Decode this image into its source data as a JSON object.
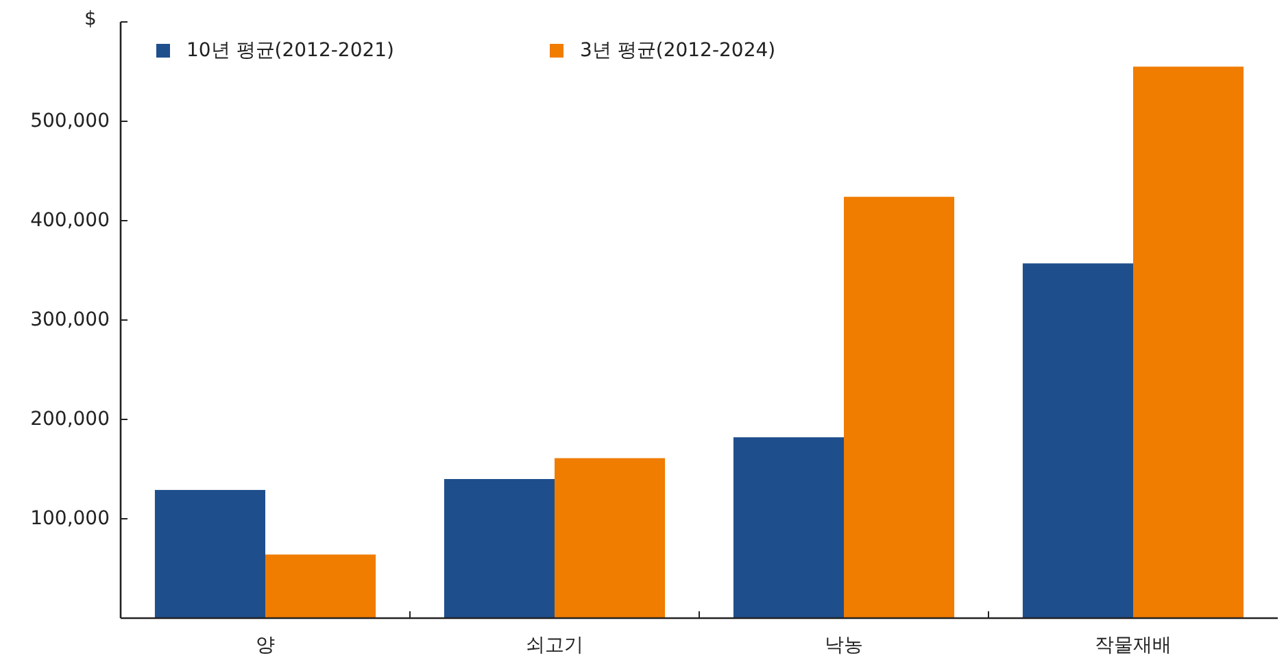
{
  "chart_data": {
    "type": "bar",
    "ylabel": "$",
    "categories": [
      "양",
      "쇠고기",
      "낙농",
      "작물재배"
    ],
    "series": [
      {
        "name": "10년 평균(2012-2021)",
        "color": "#1f4e8c",
        "values": [
          129000,
          140000,
          182000,
          357000
        ]
      },
      {
        "name": "3년 평균(2012-2024)",
        "color": "#f07c00",
        "values": [
          64000,
          161000,
          424000,
          555000
        ]
      }
    ],
    "ylim": [
      0,
      600000
    ],
    "yticks": [
      {
        "value": 100000,
        "label": "100,000"
      },
      {
        "value": 200000,
        "label": "200,000"
      },
      {
        "value": 300000,
        "label": "300,000"
      },
      {
        "value": 400000,
        "label": "400,000"
      },
      {
        "value": 500000,
        "label": "500,000"
      },
      {
        "value": 600000,
        "label": null
      }
    ],
    "legend": "top left"
  }
}
